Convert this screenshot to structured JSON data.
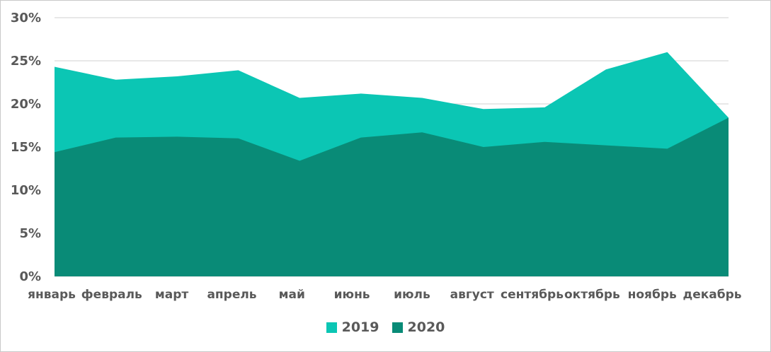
{
  "chart_data": {
    "type": "area",
    "categories": [
      "январь",
      "февраль",
      "март",
      "апрель",
      "май",
      "июнь",
      "июль",
      "август",
      "сентябрь",
      "октябрь",
      "ноябрь",
      "декабрь"
    ],
    "series": [
      {
        "name": "2019",
        "color": "#0bc6b4",
        "values": [
          24.3,
          22.8,
          23.2,
          23.9,
          20.7,
          21.2,
          20.7,
          19.4,
          19.6,
          24.0,
          26.0,
          18.4
        ]
      },
      {
        "name": "2020",
        "color": "#098b77",
        "values": [
          14.4,
          16.1,
          16.2,
          16.0,
          13.4,
          16.1,
          16.7,
          15.0,
          15.6,
          15.2,
          14.8,
          18.4
        ]
      }
    ],
    "yticks": [
      "0%",
      "5%",
      "10%",
      "15%",
      "20%",
      "25%",
      "30%"
    ],
    "ylim": [
      0,
      30
    ],
    "grid": true,
    "legend_position": "bottom-center"
  },
  "colors": {
    "axis_text": "#595959",
    "gridline": "#d9d9d9",
    "border": "#c9c9c9",
    "background": "#ffffff"
  }
}
